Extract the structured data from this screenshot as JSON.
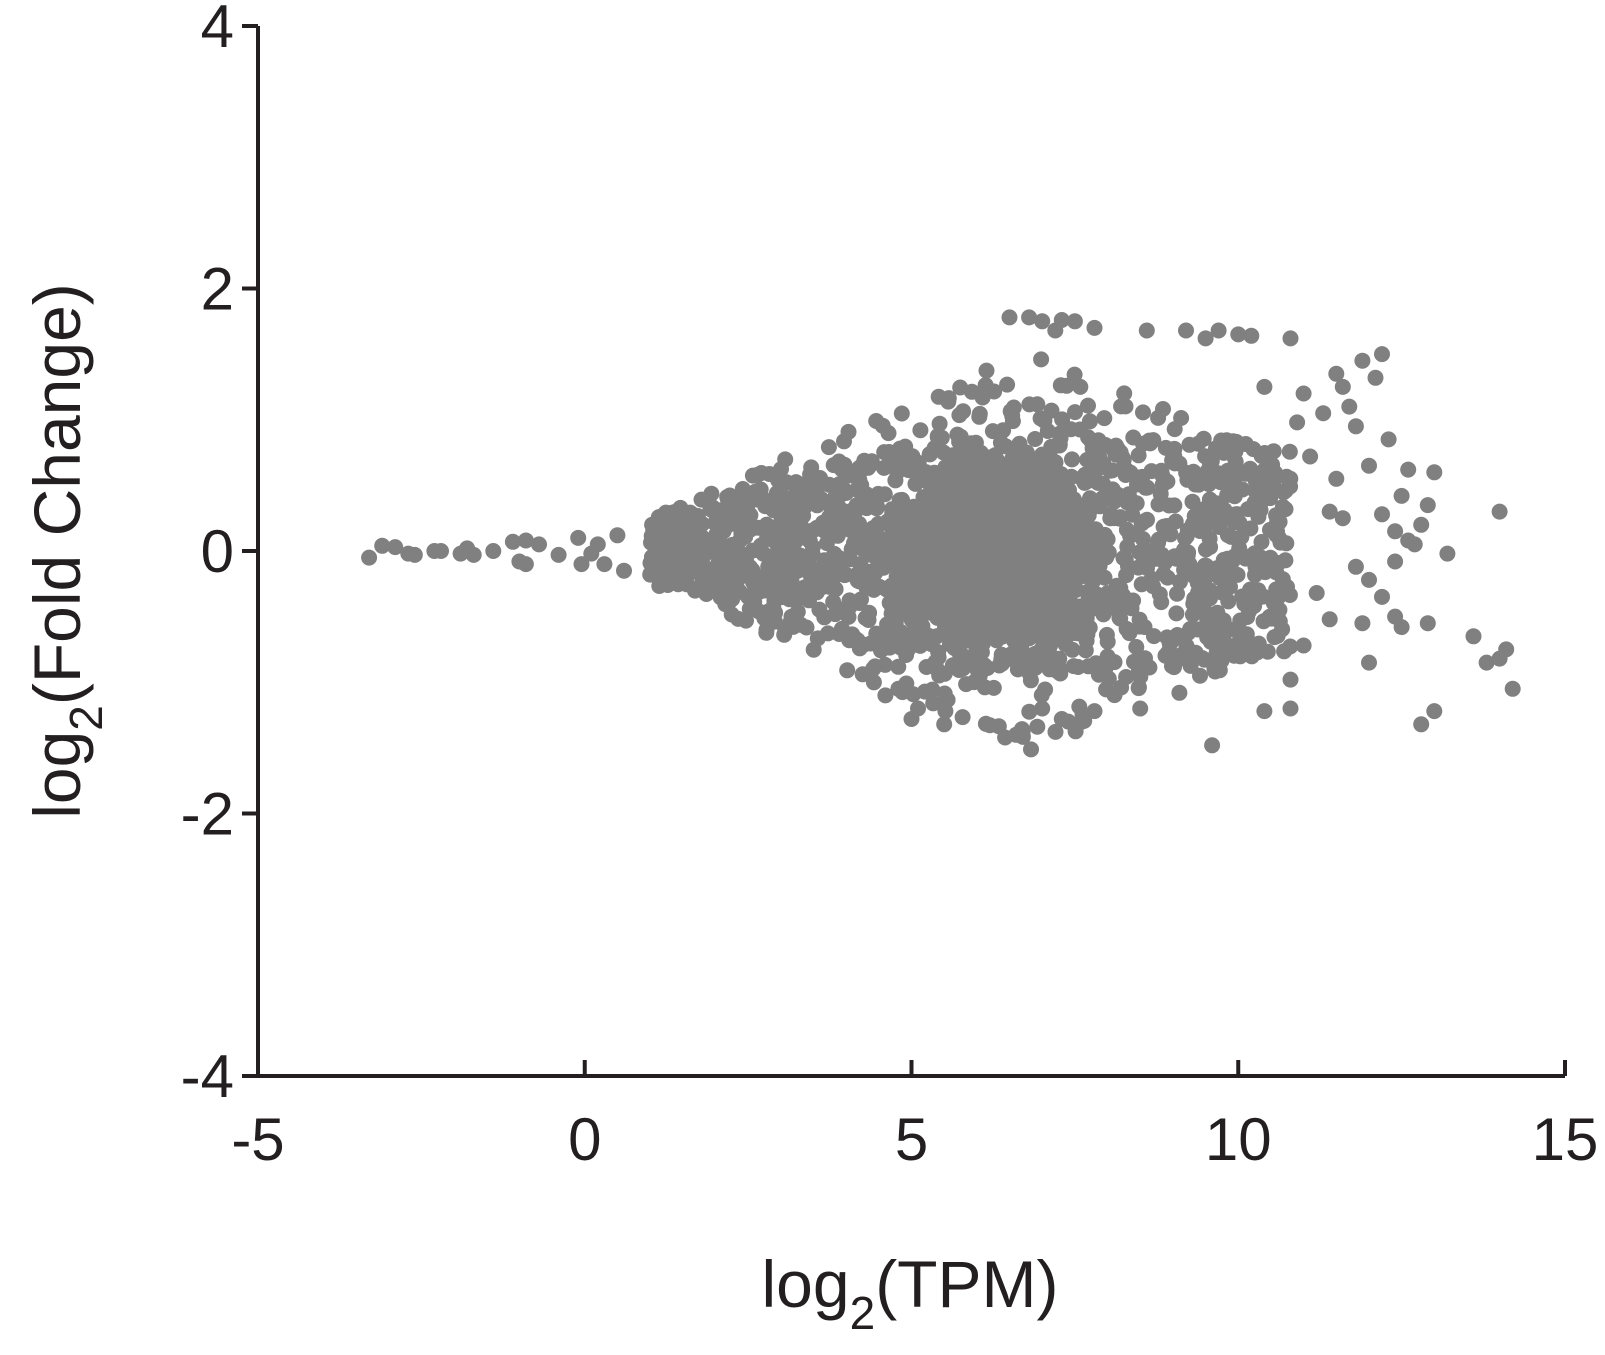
{
  "chart_data": {
    "type": "scatter",
    "title": "",
    "xlabel": {
      "base": "log",
      "sub": "2",
      "rest": "(TPM)"
    },
    "ylabel": {
      "base": "log",
      "sub": "2",
      "rest": "(Fold Change)"
    },
    "xlim": [
      -5,
      15
    ],
    "ylim": [
      -4,
      4
    ],
    "xticks": [
      -5,
      0,
      5,
      10,
      15
    ],
    "yticks": [
      -4,
      -2,
      0,
      2,
      4
    ],
    "xtick_labels": [
      "-5",
      "0",
      "5",
      "10",
      "15"
    ],
    "ytick_labels": [
      "-4",
      "-2",
      "0",
      "2",
      "4"
    ],
    "grid": false,
    "legend": "none",
    "marker_color": "#808080",
    "series": [
      {
        "points": [
          [
            -3.3,
            -0.05
          ],
          [
            -3.1,
            0.04
          ],
          [
            -2.9,
            0.03
          ],
          [
            -2.7,
            -0.02
          ],
          [
            -2.6,
            -0.03
          ],
          [
            -2.3,
            0.0
          ],
          [
            -2.2,
            0.0
          ],
          [
            -1.9,
            -0.02
          ],
          [
            -1.8,
            0.02
          ],
          [
            -1.7,
            -0.03
          ],
          [
            -1.4,
            0.0
          ],
          [
            -1.1,
            0.07
          ],
          [
            -0.9,
            0.08
          ],
          [
            -1.0,
            -0.08
          ],
          [
            -0.9,
            -0.1
          ],
          [
            -0.7,
            0.05
          ],
          [
            -0.4,
            -0.03
          ],
          [
            -0.1,
            0.1
          ],
          [
            -0.05,
            -0.1
          ],
          [
            0.1,
            -0.02
          ],
          [
            0.2,
            0.05
          ],
          [
            0.3,
            -0.1
          ],
          [
            0.5,
            0.12
          ],
          [
            0.6,
            -0.15
          ],
          [
            6.5,
            1.78
          ],
          [
            6.8,
            1.78
          ],
          [
            7.0,
            1.75
          ],
          [
            7.3,
            1.76
          ],
          [
            7.5,
            1.75
          ],
          [
            7.2,
            1.68
          ],
          [
            7.8,
            1.7
          ],
          [
            8.6,
            1.68
          ],
          [
            9.2,
            1.68
          ],
          [
            9.5,
            1.62
          ],
          [
            9.7,
            1.68
          ],
          [
            10.0,
            1.65
          ],
          [
            10.2,
            1.64
          ],
          [
            10.8,
            1.62
          ],
          [
            11.9,
            1.45
          ],
          [
            12.2,
            1.5
          ],
          [
            10.4,
            1.25
          ],
          [
            11.0,
            1.2
          ],
          [
            11.5,
            1.35
          ],
          [
            11.6,
            1.25
          ],
          [
            12.1,
            1.32
          ],
          [
            10.9,
            0.98
          ],
          [
            11.3,
            1.05
          ],
          [
            11.7,
            1.1
          ],
          [
            11.8,
            0.95
          ],
          [
            12.0,
            0.65
          ],
          [
            12.3,
            0.85
          ],
          [
            11.1,
            0.72
          ],
          [
            11.5,
            0.55
          ],
          [
            12.6,
            0.62
          ],
          [
            13.0,
            0.6
          ],
          [
            12.5,
            0.42
          ],
          [
            12.9,
            0.35
          ],
          [
            12.2,
            0.28
          ],
          [
            12.4,
            0.15
          ],
          [
            12.6,
            0.08
          ],
          [
            12.8,
            0.2
          ],
          [
            13.2,
            -0.02
          ],
          [
            12.7,
            0.05
          ],
          [
            11.4,
            0.3
          ],
          [
            11.6,
            0.25
          ],
          [
            14.0,
            0.3
          ],
          [
            11.8,
            -0.12
          ],
          [
            12.4,
            -0.08
          ],
          [
            12.0,
            -0.22
          ],
          [
            12.2,
            -0.35
          ],
          [
            12.4,
            -0.5
          ],
          [
            12.5,
            -0.58
          ],
          [
            11.9,
            -0.55
          ],
          [
            12.9,
            -0.55
          ],
          [
            12.0,
            -0.85
          ],
          [
            13.6,
            -0.65
          ],
          [
            13.8,
            -0.85
          ],
          [
            14.1,
            -0.75
          ],
          [
            14.0,
            -0.82
          ],
          [
            14.2,
            -1.05
          ],
          [
            11.0,
            -0.72
          ],
          [
            11.4,
            -0.52
          ],
          [
            11.2,
            -0.32
          ],
          [
            10.8,
            -0.98
          ],
          [
            10.8,
            -1.2
          ],
          [
            10.4,
            -1.22
          ],
          [
            9.6,
            -1.48
          ],
          [
            12.8,
            -1.32
          ],
          [
            13.0,
            -1.22
          ],
          [
            9.1,
            -1.08
          ],
          [
            8.5,
            -1.2
          ],
          [
            7.8,
            -1.22
          ],
          [
            7.4,
            -1.3
          ],
          [
            6.6,
            -1.4
          ],
          [
            6.7,
            -1.38
          ],
          [
            5.5,
            -1.32
          ],
          [
            5.0,
            -1.28
          ],
          [
            5.1,
            -1.2
          ],
          [
            4.6,
            -1.1
          ],
          [
            4.8,
            -1.05
          ],
          [
            7.0,
            -1.2
          ],
          [
            7.3,
            -1.28
          ]
        ]
      }
    ]
  }
}
